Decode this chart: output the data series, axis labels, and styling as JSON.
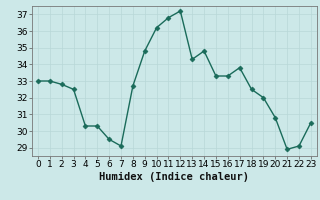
{
  "x": [
    0,
    1,
    2,
    3,
    4,
    5,
    6,
    7,
    8,
    9,
    10,
    11,
    12,
    13,
    14,
    15,
    16,
    17,
    18,
    19,
    20,
    21,
    22,
    23
  ],
  "y": [
    33.0,
    33.0,
    32.8,
    32.5,
    30.3,
    30.3,
    29.5,
    29.1,
    32.7,
    34.8,
    36.2,
    36.8,
    37.2,
    34.3,
    34.8,
    33.3,
    33.3,
    33.8,
    32.5,
    32.0,
    30.8,
    28.9,
    29.1,
    30.5
  ],
  "line_color": "#1a6b5a",
  "marker": "D",
  "markersize": 2.5,
  "linewidth": 1.0,
  "bg_color": "#cce8e8",
  "grid_color": "#b8d8d8",
  "xlabel": "Humidex (Indice chaleur)",
  "xlabel_fontsize": 7.5,
  "tick_fontsize": 6.5,
  "xlim": [
    -0.5,
    23.5
  ],
  "ylim": [
    28.5,
    37.5
  ],
  "yticks": [
    29,
    30,
    31,
    32,
    33,
    34,
    35,
    36,
    37
  ],
  "xticks": [
    0,
    1,
    2,
    3,
    4,
    5,
    6,
    7,
    8,
    9,
    10,
    11,
    12,
    13,
    14,
    15,
    16,
    17,
    18,
    19,
    20,
    21,
    22,
    23
  ]
}
